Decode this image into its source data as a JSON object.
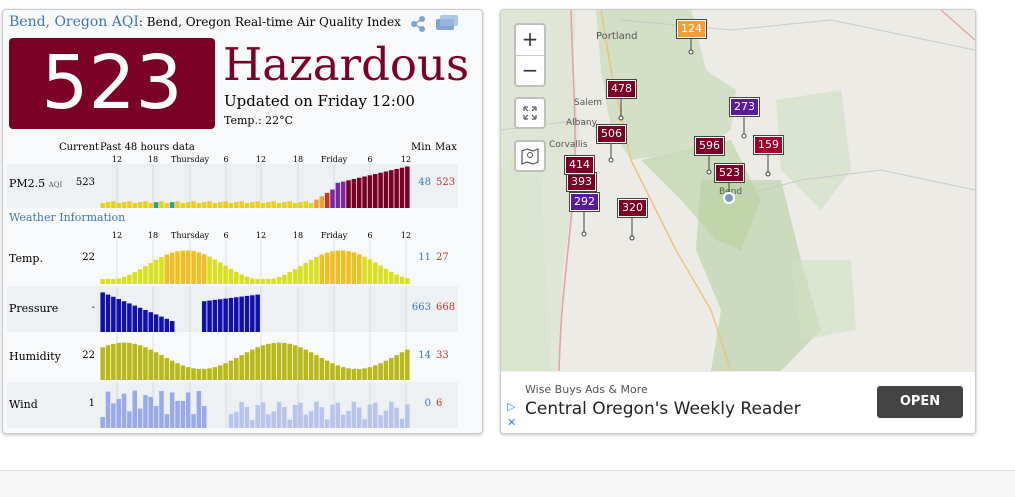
{
  "header": {
    "city_link": "Bend, Oregon AQI",
    "subtitle": ": Bend, Oregon Real-time Air Quality Index"
  },
  "aqi": {
    "value": "523",
    "status": "Hazardous",
    "updated": "Updated on Friday 12:00",
    "temp": "Temp.: 22°C",
    "color": "#7a0026"
  },
  "chart_header": {
    "current": "Current",
    "past": "Past 48 hours data",
    "min": "Min",
    "max": "Max"
  },
  "ticks": [
    "12",
    "18",
    "Thursday",
    "6",
    "12",
    "18",
    "Friday",
    "6",
    "12"
  ],
  "weather_title": "Weather Information",
  "rows": [
    {
      "label": "PM2.5",
      "unit": "AQI",
      "current": "523",
      "min": "48",
      "max": "523"
    },
    {
      "label": "Temp.",
      "current": "22",
      "min": "11",
      "max": "27"
    },
    {
      "label": "Pressure",
      "current": "-",
      "min": "663",
      "max": "668"
    },
    {
      "label": "Humidity",
      "current": "22",
      "min": "14",
      "max": "33"
    },
    {
      "label": "Wind",
      "current": "1",
      "min": "0",
      "max": "6"
    }
  ],
  "map": {
    "zoom_in": "+",
    "zoom_out": "−",
    "towns": [
      "Portland",
      "Salem",
      "Albany",
      "Corvallis",
      "Bend"
    ],
    "markers": [
      "124",
      "478",
      "273",
      "506",
      "596",
      "159",
      "414",
      "523",
      "292",
      "320",
      "393"
    ]
  },
  "ad": {
    "small": "Wise Buys Ads & More",
    "big": "Central Oregon's Weekly Reader",
    "button": "OPEN"
  }
}
